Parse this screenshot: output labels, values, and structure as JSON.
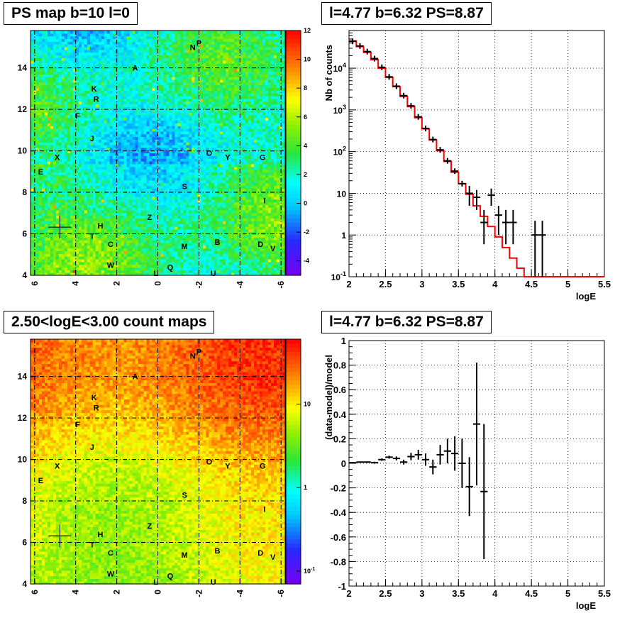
{
  "panels": {
    "ps_map_title": "PS map b=10 l=0",
    "spectrum_title": "l=4.77 b=6.32 PS=8.87",
    "count_map_title": "2.50<logE<3.00 count maps",
    "residual_title": "l=4.77 b=6.32 PS=8.87"
  },
  "colors": {
    "data_marker": "#000000",
    "model_line": "#ff0000",
    "grid": "#000000"
  },
  "chart_data": [
    {
      "type": "heatmap",
      "title": "PS map b=10 l=0",
      "x_ticks": [
        "6",
        "4",
        "2",
        "0",
        "-2",
        "-4",
        "-6"
      ],
      "x_tick_values": [
        6,
        4,
        2,
        0,
        -2,
        -4,
        -6
      ],
      "y_ticks": [
        "4",
        "6",
        "8",
        "10",
        "12",
        "14"
      ],
      "y_tick_values": [
        4,
        6,
        8,
        10,
        12,
        14
      ],
      "xlim": [
        6.2,
        -6.2
      ],
      "ylim": [
        4,
        15.8
      ],
      "colorbar": {
        "scale": "linear",
        "range": [
          -5,
          12
        ],
        "tick_labels": [
          "12",
          "10",
          "8",
          "6",
          "4",
          "2",
          "0",
          "-2",
          "-4"
        ],
        "tick_values": [
          12,
          10,
          8,
          6,
          4,
          2,
          0,
          -2,
          -4
        ]
      },
      "grid": true,
      "marker": {
        "l": 4.77,
        "b": 6.32
      },
      "source_labels": [
        {
          "t": "N",
          "l": -1.7,
          "b": 15.0
        },
        {
          "t": "P",
          "l": -2.0,
          "b": 15.2
        },
        {
          "t": "A",
          "l": 1.1,
          "b": 14.0
        },
        {
          "t": "K",
          "l": 3.1,
          "b": 13.0
        },
        {
          "t": "R",
          "l": 3.0,
          "b": 12.5
        },
        {
          "t": "F",
          "l": 3.9,
          "b": 11.7
        },
        {
          "t": "J",
          "l": 3.2,
          "b": 10.6
        },
        {
          "t": "X",
          "l": 4.9,
          "b": 9.7
        },
        {
          "t": "E",
          "l": 5.7,
          "b": 9.0
        },
        {
          "t": "O",
          "l": -2.5,
          "b": 9.9
        },
        {
          "t": "Y",
          "l": -3.4,
          "b": 9.7
        },
        {
          "t": "G",
          "l": -5.1,
          "b": 9.7
        },
        {
          "t": "S",
          "l": -1.3,
          "b": 8.3
        },
        {
          "t": "I",
          "l": -5.2,
          "b": 7.6
        },
        {
          "t": "Z",
          "l": 0.4,
          "b": 6.8
        },
        {
          "t": "H",
          "l": 2.8,
          "b": 6.4
        },
        {
          "t": "T",
          "l": 3.2,
          "b": 5.9
        },
        {
          "t": "C",
          "l": 2.3,
          "b": 5.5
        },
        {
          "t": "M",
          "l": -1.3,
          "b": 5.4
        },
        {
          "t": "B",
          "l": -2.9,
          "b": 5.6
        },
        {
          "t": "D",
          "l": -5.0,
          "b": 5.5
        },
        {
          "t": "V",
          "l": -5.6,
          "b": 5.3
        },
        {
          "t": "W",
          "l": 2.3,
          "b": 4.5
        },
        {
          "t": "Q",
          "l": -0.6,
          "b": 4.4
        },
        {
          "t": "U",
          "l": -2.7,
          "b": 4.1
        },
        {
          "t": "L",
          "l": 0.1,
          "b": 4.1
        }
      ]
    },
    {
      "type": "line",
      "title": "l=4.77 b=6.32 PS=8.87",
      "xlabel": "logE",
      "ylabel": "Nb of counts",
      "yscale": "log",
      "xlim": [
        2,
        5.5
      ],
      "ylim": [
        0.1,
        80000
      ],
      "x_ticks": [
        "2",
        "2.5",
        "3",
        "3.5",
        "4",
        "4.5",
        "5",
        "5.5"
      ],
      "x_tick_values": [
        2,
        2.5,
        3,
        3.5,
        4,
        4.5,
        5,
        5.5
      ],
      "y_ticks": [
        "10^-1",
        "1",
        "10",
        "10^2",
        "10^3",
        "10^4"
      ],
      "y_tick_values": [
        0.1,
        1,
        10,
        100,
        1000,
        10000
      ],
      "grid": true,
      "bin_edges": [
        2.0,
        2.1,
        2.2,
        2.3,
        2.4,
        2.5,
        2.6,
        2.7,
        2.8,
        2.9,
        3.0,
        3.1,
        3.2,
        3.3,
        3.4,
        3.5,
        3.6,
        3.7,
        3.8,
        3.9,
        4.0,
        4.1,
        4.2,
        4.3,
        4.4,
        4.5,
        4.6,
        4.7,
        4.8,
        4.9,
        5.0,
        5.1,
        5.2,
        5.3,
        5.4,
        5.5
      ],
      "series": [
        {
          "name": "",
          "kind": "model_histogram",
          "values": [
            45000,
            33000,
            24000,
            16000,
            10000,
            6000,
            3600,
            2100,
            1200,
            650,
            350,
            190,
            105,
            58,
            32,
            17,
            9.5,
            5,
            2.8,
            1.6,
            0.9,
            0.5,
            0.28,
            0.16,
            0.1,
            0.1,
            0.1,
            0.1,
            0.1,
            0.1,
            0.1,
            0.1,
            0.1,
            0.1,
            0.1
          ]
        },
        {
          "name": "",
          "kind": "data_points",
          "points": [
            {
              "x": 2.05,
              "y": 44000
            },
            {
              "x": 2.15,
              "y": 34000
            },
            {
              "x": 2.25,
              "y": 25000
            },
            {
              "x": 2.35,
              "y": 17000
            },
            {
              "x": 2.45,
              "y": 10500
            },
            {
              "x": 2.55,
              "y": 6200
            },
            {
              "x": 2.65,
              "y": 3700
            },
            {
              "x": 2.75,
              "y": 2200
            },
            {
              "x": 2.85,
              "y": 1250
            },
            {
              "x": 2.95,
              "y": 680
            },
            {
              "x": 3.05,
              "y": 360
            },
            {
              "x": 3.15,
              "y": 195
            },
            {
              "x": 3.25,
              "y": 110
            },
            {
              "x": 3.35,
              "y": 60
            },
            {
              "x": 3.45,
              "y": 34
            },
            {
              "x": 3.55,
              "y": 17
            },
            {
              "x": 3.65,
              "y": 10,
              "ylo": 5,
              "yhi": 15
            },
            {
              "x": 3.75,
              "y": 8,
              "ylo": 4,
              "yhi": 12
            },
            {
              "x": 3.85,
              "y": 2,
              "ylo": 0.6,
              "yhi": 4
            },
            {
              "x": 3.95,
              "y": 9,
              "ylo": 5,
              "yhi": 13
            },
            {
              "x": 4.05,
              "y": 3,
              "ylo": 1,
              "yhi": 5
            },
            {
              "x": 4.15,
              "y": 2,
              "ylo": 0.6,
              "yhi": 4
            },
            {
              "x": 4.25,
              "y": 2,
              "ylo": 0.6,
              "yhi": 4
            },
            {
              "x": 4.55,
              "y": 1,
              "ylo": 0.1,
              "yhi": 2.2
            },
            {
              "x": 4.65,
              "y": 1,
              "ylo": 0.1,
              "yhi": 2.2
            }
          ]
        }
      ]
    },
    {
      "type": "heatmap",
      "title": "2.50<logE<3.00 count maps",
      "x_ticks": [
        "6",
        "4",
        "2",
        "0",
        "-2",
        "-4",
        "-6"
      ],
      "x_tick_values": [
        6,
        4,
        2,
        0,
        -2,
        -4,
        -6
      ],
      "y_ticks": [
        "4",
        "6",
        "8",
        "10",
        "12",
        "14"
      ],
      "y_tick_values": [
        4,
        6,
        8,
        10,
        12,
        14
      ],
      "xlim": [
        6.2,
        -6.2
      ],
      "ylim": [
        4,
        15.8
      ],
      "colorbar": {
        "scale": "log",
        "range": [
          0.07,
          60
        ],
        "tick_labels": [
          "10",
          "1",
          "10^-1"
        ],
        "tick_values": [
          10,
          1,
          0.1
        ]
      },
      "grid": true,
      "marker": {
        "l": 4.77,
        "b": 6.32
      },
      "source_labels": "same as PS map"
    },
    {
      "type": "scatter",
      "title": "l=4.77 b=6.32 PS=8.87",
      "xlabel": "logE",
      "ylabel": "(data-model)/model",
      "xlim": [
        2,
        5.5
      ],
      "ylim": [
        -1,
        1
      ],
      "x_ticks": [
        "2",
        "2.5",
        "3",
        "3.5",
        "4",
        "4.5",
        "5",
        "5.5"
      ],
      "x_tick_values": [
        2,
        2.5,
        3,
        3.5,
        4,
        4.5,
        5,
        5.5
      ],
      "y_ticks": [
        "-1",
        "-0.8",
        "-0.6",
        "-0.4",
        "-0.2",
        "0",
        "0.2",
        "0.4",
        "0.6",
        "0.8",
        "1"
      ],
      "y_tick_values": [
        -1,
        -0.8,
        -0.6,
        -0.4,
        -0.2,
        0,
        0.2,
        0.4,
        0.6,
        0.8,
        1
      ],
      "grid": true,
      "series": [
        {
          "name": "",
          "points": [
            {
              "x": 2.05,
              "y": 0.005,
              "err": 0.005
            },
            {
              "x": 2.15,
              "y": 0.01,
              "err": 0.005
            },
            {
              "x": 2.25,
              "y": 0.01,
              "err": 0.006
            },
            {
              "x": 2.35,
              "y": 0.005,
              "err": 0.008
            },
            {
              "x": 2.45,
              "y": 0.03,
              "err": 0.01
            },
            {
              "x": 2.55,
              "y": 0.05,
              "err": 0.012
            },
            {
              "x": 2.65,
              "y": 0.04,
              "err": 0.016
            },
            {
              "x": 2.75,
              "y": 0.01,
              "err": 0.02
            },
            {
              "x": 2.85,
              "y": 0.055,
              "err": 0.03
            },
            {
              "x": 2.95,
              "y": 0.07,
              "err": 0.04
            },
            {
              "x": 3.05,
              "y": 0.03,
              "err": 0.05
            },
            {
              "x": 3.15,
              "y": -0.03,
              "err": 0.06
            },
            {
              "x": 3.25,
              "y": 0.07,
              "err": 0.08
            },
            {
              "x": 3.35,
              "y": 0.1,
              "err": 0.1
            },
            {
              "x": 3.45,
              "y": 0.08,
              "err": 0.14
            },
            {
              "x": 3.55,
              "y": 0.0,
              "err": 0.2
            },
            {
              "x": 3.65,
              "y": -0.19,
              "err": 0.24
            },
            {
              "x": 3.75,
              "y": 0.32,
              "err": 0.5
            },
            {
              "x": 3.85,
              "y": -0.23,
              "err": 0.55
            }
          ]
        }
      ]
    }
  ]
}
